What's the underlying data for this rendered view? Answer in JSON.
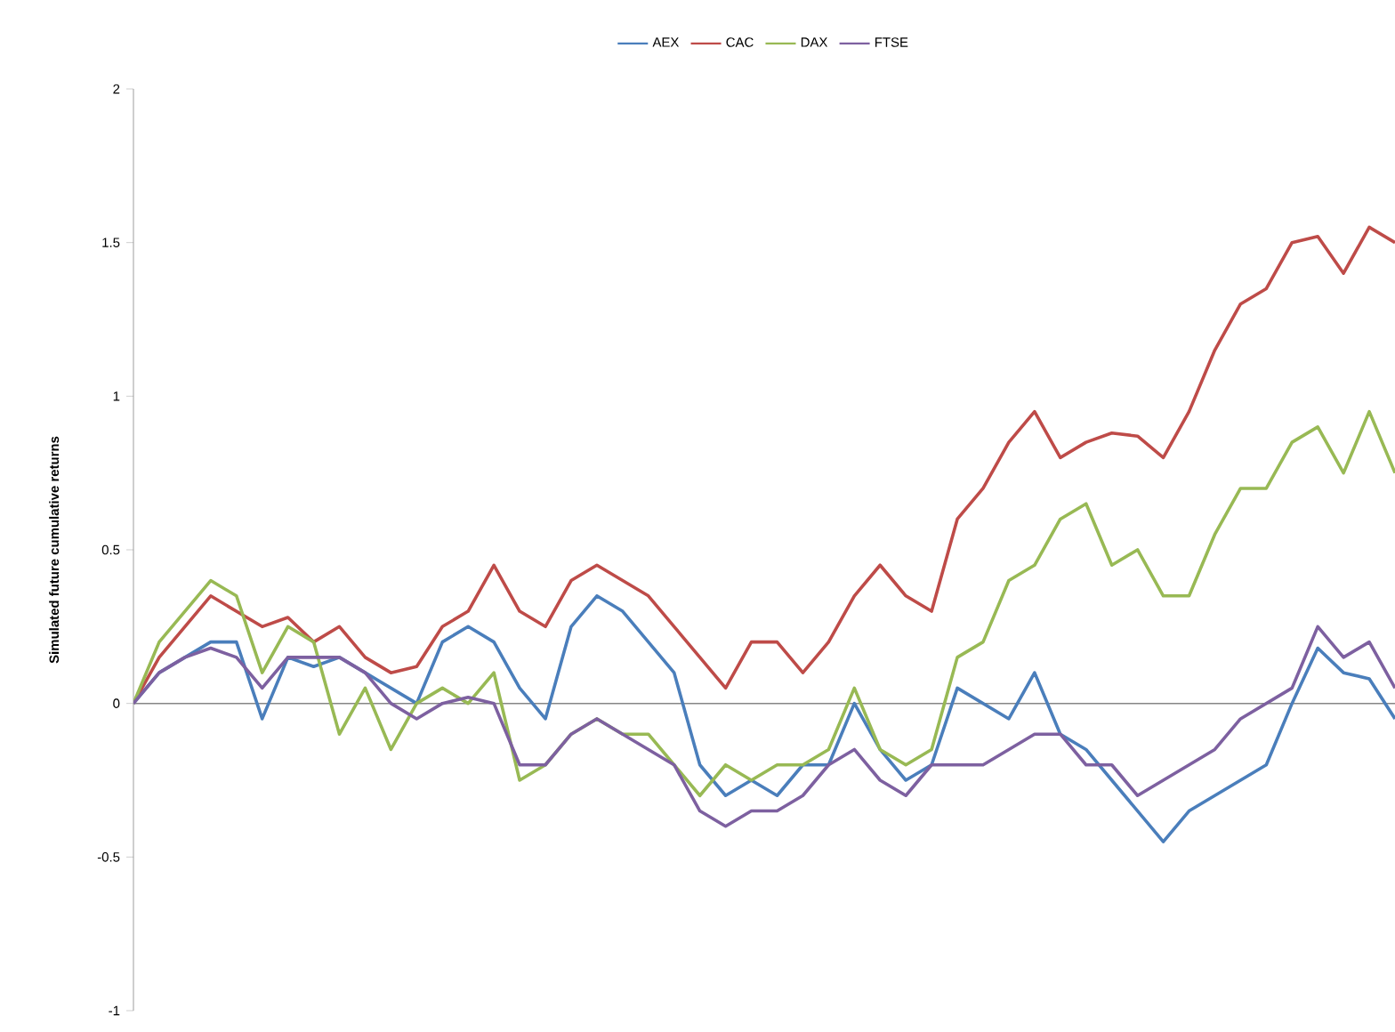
{
  "chart_data": {
    "type": "line",
    "ylabel": "Simulated future cumulative returns",
    "categories": [
      null,
      null,
      null,
      null,
      null,
      null,
      null,
      null,
      null,
      null,
      null,
      null,
      null,
      null,
      null,
      null,
      null,
      null,
      null,
      null,
      null,
      null,
      null,
      null,
      null,
      null,
      null,
      null,
      null,
      null,
      null,
      null,
      null,
      null,
      null,
      null,
      null,
      null,
      null,
      null,
      null,
      null,
      null,
      null,
      null,
      null,
      null,
      null,
      null,
      null
    ],
    "series": [
      {
        "name": "AEX",
        "color": "#4a7ebb",
        "values": [
          0,
          0.1,
          0.15,
          0.2,
          0.2,
          -0.05,
          0.15,
          0.12,
          0.15,
          0.1,
          0.05,
          0.0,
          0.2,
          0.25,
          0.2,
          0.05,
          -0.05,
          0.25,
          0.35,
          0.3,
          0.2,
          0.1,
          -0.2,
          -0.3,
          -0.25,
          -0.3,
          -0.2,
          -0.2,
          0.0,
          -0.15,
          -0.25,
          -0.2,
          0.05,
          0.0,
          -0.05,
          0.1,
          -0.1,
          -0.15,
          -0.25,
          -0.35,
          -0.45,
          -0.35,
          -0.3,
          -0.25,
          -0.2,
          0.0,
          0.18,
          0.1,
          0.08,
          -0.05
        ]
      },
      {
        "name": "CAC",
        "color": "#be4b48",
        "values": [
          0,
          0.15,
          0.25,
          0.35,
          0.3,
          0.25,
          0.28,
          0.2,
          0.25,
          0.15,
          0.1,
          0.12,
          0.25,
          0.3,
          0.45,
          0.3,
          0.25,
          0.4,
          0.45,
          0.4,
          0.35,
          0.25,
          0.15,
          0.05,
          0.2,
          0.2,
          0.1,
          0.2,
          0.35,
          0.45,
          0.35,
          0.3,
          0.6,
          0.7,
          0.85,
          0.95,
          0.8,
          0.85,
          0.88,
          0.87,
          0.8,
          0.95,
          1.15,
          1.3,
          1.35,
          1.5,
          1.52,
          1.4,
          1.55,
          1.5
        ]
      },
      {
        "name": "DAX",
        "color": "#98b954",
        "values": [
          0,
          0.2,
          0.3,
          0.4,
          0.35,
          0.1,
          0.25,
          0.2,
          -0.1,
          0.05,
          -0.15,
          0.0,
          0.05,
          0.0,
          0.1,
          -0.25,
          -0.2,
          -0.1,
          -0.05,
          -0.1,
          -0.1,
          -0.2,
          -0.3,
          -0.2,
          -0.25,
          -0.2,
          -0.2,
          -0.15,
          0.05,
          -0.15,
          -0.2,
          -0.15,
          0.15,
          0.2,
          0.4,
          0.45,
          0.6,
          0.65,
          0.45,
          0.5,
          0.35,
          0.35,
          0.55,
          0.7,
          0.7,
          0.85,
          0.9,
          0.75,
          0.95,
          0.75
        ]
      },
      {
        "name": "FTSE",
        "color": "#7d60a0",
        "values": [
          0,
          0.1,
          0.15,
          0.18,
          0.15,
          0.05,
          0.15,
          0.15,
          0.15,
          0.1,
          0.0,
          -0.05,
          0.0,
          0.02,
          0.0,
          -0.2,
          -0.2,
          -0.1,
          -0.05,
          -0.1,
          -0.15,
          -0.2,
          -0.35,
          -0.4,
          -0.35,
          -0.35,
          -0.3,
          -0.2,
          -0.15,
          -0.25,
          -0.3,
          -0.2,
          -0.2,
          -0.2,
          -0.15,
          -0.1,
          -0.1,
          -0.2,
          -0.2,
          -0.3,
          -0.25,
          -0.2,
          -0.15,
          -0.05,
          0.0,
          0.05,
          0.25,
          0.15,
          0.2,
          0.05
        ]
      }
    ],
    "ylim": [
      -1,
      2
    ],
    "yticks": [
      -1,
      -0.5,
      0,
      0.5,
      1,
      1.5,
      2
    ],
    "ref_lines": [
      {
        "axis": "y",
        "value": 0,
        "color": "#868686"
      }
    ],
    "tick_labels": "y",
    "legend": "top",
    "grid": false,
    "marker": "none",
    "line_style": "solid"
  }
}
